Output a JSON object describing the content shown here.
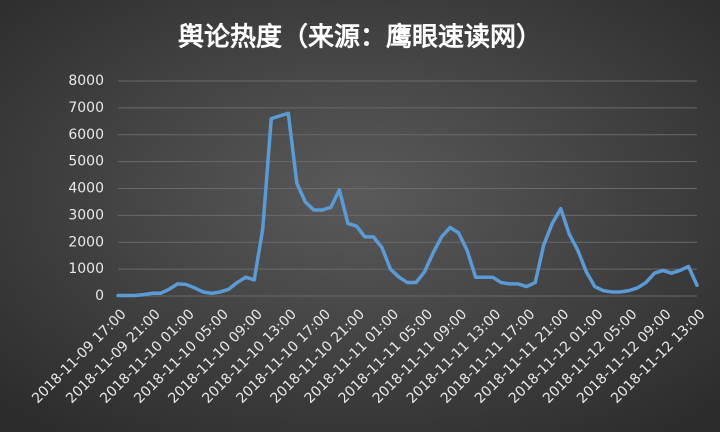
{
  "chart_data": {
    "type": "line",
    "title": "舆论热度（来源：鹰眼速读网）",
    "categories": [
      "2018-11-09 17:00",
      null,
      null,
      null,
      "2018-11-09 21:00",
      null,
      null,
      null,
      "2018-11-10 01:00",
      null,
      null,
      null,
      "2018-11-10 05:00",
      null,
      null,
      null,
      "2018-11-10 09:00",
      null,
      null,
      null,
      "2018-11-10 13:00",
      null,
      null,
      null,
      "2018-11-10 17:00",
      null,
      null,
      null,
      "2018-11-10 21:00",
      null,
      null,
      null,
      "2018-11-11 01:00",
      null,
      null,
      null,
      "2018-11-11 05:00",
      null,
      null,
      null,
      "2018-11-11 09:00",
      null,
      null,
      null,
      "2018-11-11 13:00",
      null,
      null,
      null,
      "2018-11-11 17:00",
      null,
      null,
      null,
      "2018-11-11 21:00",
      null,
      null,
      null,
      "2018-11-12 01:00",
      null,
      null,
      null,
      "2018-11-12 05:00",
      null,
      null,
      null,
      "2018-11-12 09:00",
      null,
      null,
      null,
      "2018-11-12 13:00"
    ],
    "values": [
      20,
      20,
      20,
      50,
      100,
      100,
      250,
      450,
      430,
      300,
      150,
      100,
      150,
      250,
      500,
      700,
      600,
      2500,
      6600,
      6700,
      6800,
      4200,
      3500,
      3200,
      3200,
      3300,
      3950,
      2700,
      2600,
      2200,
      2200,
      1800,
      1000,
      700,
      500,
      500,
      900,
      1600,
      2200,
      2550,
      2350,
      1700,
      700,
      700,
      700,
      500,
      450,
      450,
      350,
      500,
      1900,
      2700,
      3250,
      2300,
      1700,
      900,
      350,
      200,
      150,
      150,
      200,
      300,
      500,
      850,
      950,
      850,
      950,
      1100,
      400
    ],
    "color": "#5b9bd5",
    "ylim": [
      0,
      8000
    ],
    "yticks": [
      0,
      1000,
      2000,
      3000,
      4000,
      5000,
      6000,
      7000,
      8000
    ],
    "grid": true
  }
}
